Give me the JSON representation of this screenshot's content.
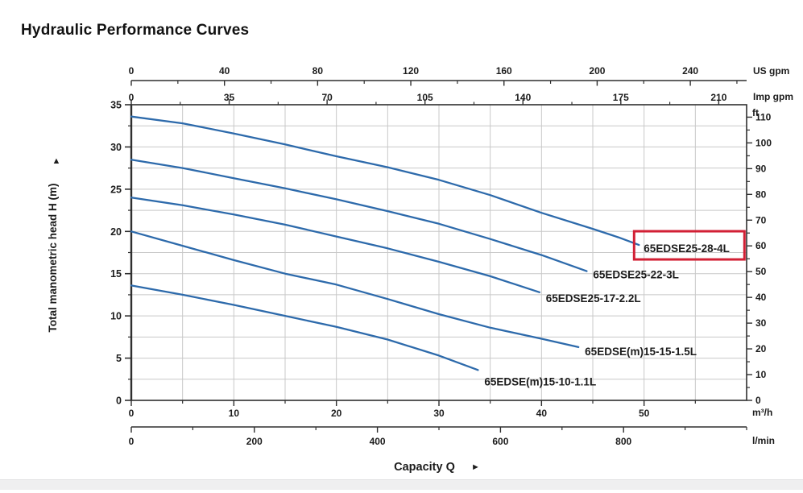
{
  "page": {
    "title": "Hydraulic Performance Curves"
  },
  "chart_data": {
    "type": "line",
    "title": "Hydraulic Performance Curves",
    "xlabel": "Capacity Q",
    "xlabel_arrow": "►",
    "ylabel": "Total manometric head H (m)",
    "ylabel_arrow": "▲",
    "grid": true,
    "axes": {
      "x_bottom_m3h": {
        "unit": "m³/h",
        "min": 0,
        "max": 60,
        "majors": [
          0,
          10,
          20,
          30,
          40,
          50
        ],
        "minors": [
          5,
          15,
          25,
          35,
          45,
          55
        ]
      },
      "x_bottom_lmin": {
        "unit": "l/min",
        "min": 0,
        "max": 1000,
        "majors": [
          0,
          200,
          400,
          600,
          800
        ],
        "minors": [
          100,
          300,
          500,
          700,
          900,
          1000
        ]
      },
      "x_top_usgpm": {
        "unit": "US gpm",
        "min": 0,
        "max": 264.17,
        "majors": [
          0,
          40,
          80,
          120,
          160,
          200,
          240
        ],
        "minors": [
          20,
          60,
          100,
          140,
          180,
          220,
          260
        ]
      },
      "x_top_impgpm": {
        "unit": "Imp gpm",
        "min": 0,
        "max": 219.97,
        "majors": [
          0,
          35,
          70,
          105,
          140,
          175,
          210
        ],
        "minors": [
          17.5,
          52.5,
          87.5,
          122.5,
          157.5,
          192.5
        ]
      },
      "y_left_m": {
        "unit": "m",
        "min": 0,
        "max": 35,
        "majors": [
          0,
          5,
          10,
          15,
          20,
          25,
          30,
          35
        ],
        "minors": [
          2.5,
          7.5,
          12.5,
          17.5,
          22.5,
          27.5,
          32.5
        ]
      },
      "y_right_ft": {
        "unit": "ft",
        "min": 0,
        "max": 114.8,
        "majors": [
          0,
          10,
          20,
          30,
          40,
          50,
          60,
          70,
          80,
          90,
          100,
          110
        ],
        "minors": [
          5,
          15,
          25,
          35,
          45,
          55,
          65,
          75,
          85,
          95,
          105
        ]
      }
    },
    "series": [
      {
        "name": "65EDSE25-28-4L",
        "points": [
          [
            0,
            33.6
          ],
          [
            5,
            32.8
          ],
          [
            10,
            31.6
          ],
          [
            15,
            30.3
          ],
          [
            20,
            28.9
          ],
          [
            25,
            27.6
          ],
          [
            30,
            26.1
          ],
          [
            35,
            24.3
          ],
          [
            40,
            22.2
          ],
          [
            45,
            20.3
          ],
          [
            47.5,
            19.3
          ],
          [
            49.5,
            18.4
          ]
        ]
      },
      {
        "name": "65EDSE25-22-3L",
        "points": [
          [
            0,
            28.5
          ],
          [
            5,
            27.5
          ],
          [
            10,
            26.3
          ],
          [
            15,
            25.1
          ],
          [
            20,
            23.8
          ],
          [
            25,
            22.4
          ],
          [
            30,
            20.9
          ],
          [
            35,
            19.1
          ],
          [
            40,
            17.2
          ],
          [
            44.4,
            15.3
          ]
        ]
      },
      {
        "name": "65EDSE25-17-2.2L",
        "points": [
          [
            0,
            24.0
          ],
          [
            5,
            23.1
          ],
          [
            10,
            22.0
          ],
          [
            15,
            20.8
          ],
          [
            20,
            19.4
          ],
          [
            25,
            18.0
          ],
          [
            30,
            16.4
          ],
          [
            35,
            14.7
          ],
          [
            39.8,
            12.8
          ]
        ]
      },
      {
        "name": "65EDSE(m)15-15-1.5L",
        "points": [
          [
            0,
            20.0
          ],
          [
            5,
            18.3
          ],
          [
            10,
            16.6
          ],
          [
            15,
            15.0
          ],
          [
            20,
            13.7
          ],
          [
            25,
            12.0
          ],
          [
            30,
            10.2
          ],
          [
            35,
            8.6
          ],
          [
            40,
            7.3
          ],
          [
            43.6,
            6.3
          ]
        ]
      },
      {
        "name": "65EDSE(m)15-10-1.1L",
        "points": [
          [
            0,
            13.6
          ],
          [
            5,
            12.5
          ],
          [
            10,
            11.3
          ],
          [
            15,
            10.0
          ],
          [
            20,
            8.7
          ],
          [
            25,
            7.2
          ],
          [
            30,
            5.3
          ],
          [
            33.8,
            3.6
          ]
        ]
      }
    ],
    "highlight": {
      "series": "65EDSE25-28-4L",
      "color": "#d22035"
    },
    "colors": {
      "curve": "#2d6aab",
      "grid": "#c8c8c8",
      "axis": "#2f2f2f",
      "text": "#1c1c1c",
      "highlight_red": "#d22035"
    }
  }
}
